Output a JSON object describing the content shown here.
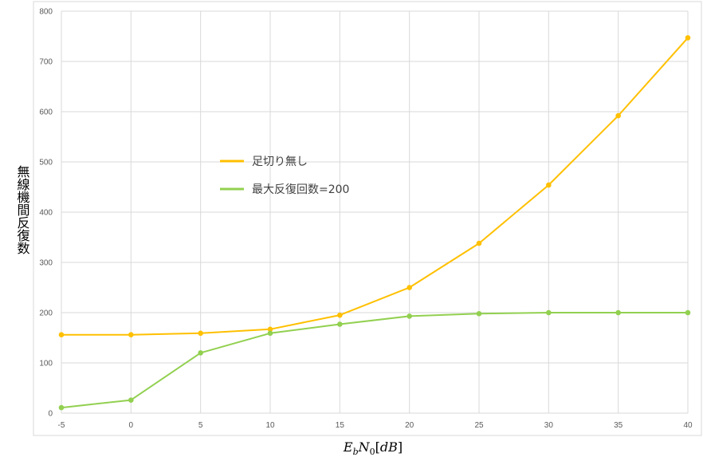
{
  "chart_data": {
    "type": "line",
    "title": "",
    "xlabel": "E_bN_0[dB]",
    "ylabel": "無線機間反復数",
    "xlim": [
      -5,
      40
    ],
    "ylim": [
      0,
      800
    ],
    "x": [
      -5,
      0,
      5,
      10,
      15,
      20,
      25,
      30,
      35,
      40
    ],
    "x_ticks": [
      "-5",
      "0",
      "5",
      "10",
      "15",
      "20",
      "25",
      "30",
      "35",
      "40"
    ],
    "y_ticks": [
      "0",
      "100",
      "200",
      "300",
      "400",
      "500",
      "600",
      "700",
      "800"
    ],
    "grid": true,
    "legend_position": "center-left",
    "series": [
      {
        "name": "足切り無し",
        "color": "#FFC000",
        "values": [
          156,
          156,
          159,
          167,
          195,
          250,
          338,
          454,
          592,
          747
        ]
      },
      {
        "name": "最大反復回数=200",
        "color": "#92D050",
        "values": [
          11,
          26,
          120,
          159,
          177,
          193,
          198,
          200,
          200,
          200
        ]
      }
    ]
  }
}
